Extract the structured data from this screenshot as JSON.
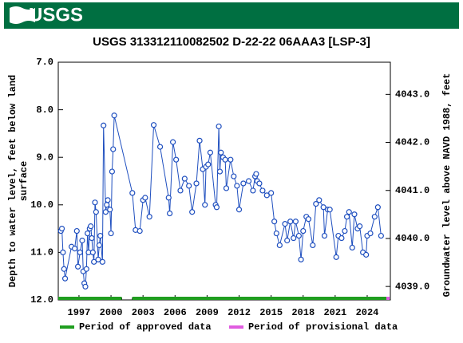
{
  "chart_data": {
    "type": "line",
    "logo": "USGS",
    "title": "USGS 313312110082502 D-22-22 06AAA3 [LSP-3]",
    "ylabel": [
      "Depth to water level, feet below land",
      "surface"
    ],
    "y2label": "Groundwater level above NAVD 1988, feet",
    "xlim": [
      1995.06,
      2026.17
    ],
    "xticks": [
      1997,
      2000,
      2003,
      2006,
      2009,
      2012,
      2015,
      2018,
      2021,
      2024
    ],
    "ylim": [
      7,
      12
    ],
    "yticks": [
      {
        "value": 7,
        "label": "7.0"
      },
      {
        "value": 8,
        "label": "8.0"
      },
      {
        "value": 9,
        "label": "9.0"
      },
      {
        "value": 10,
        "label": "10.0"
      },
      {
        "value": 11,
        "label": "11.0"
      },
      {
        "value": 12,
        "label": "12.0"
      }
    ],
    "y_inverted": true,
    "y2lim": [
      4043.67,
      4038.72
    ],
    "y2ticks": [
      {
        "value": 4039,
        "label": "4039.0"
      },
      {
        "value": 4040,
        "label": "4040.0"
      },
      {
        "value": 4041,
        "label": "4041.0"
      },
      {
        "value": 4042,
        "label": "4042.0"
      },
      {
        "value": 4043,
        "label": "4043.0"
      }
    ],
    "series": [
      {
        "name": "Depth to water level",
        "color": "#1f4fbf",
        "x": [
          1995.3,
          1995.4,
          1995.5,
          1995.6,
          1995.7,
          1996.3,
          1996.6,
          1996.8,
          1996.9,
          1997.1,
          1997.3,
          1997.4,
          1997.5,
          1997.6,
          1997.7,
          1997.8,
          1997.9,
          1998.0,
          1998.1,
          1998.2,
          1998.3,
          1998.4,
          1998.5,
          1998.6,
          1998.8,
          1998.9,
          1999.0,
          1999.2,
          1999.3,
          1999.5,
          1999.6,
          1999.7,
          1999.9,
          2000.0,
          2000.1,
          2000.2,
          2000.3,
          2002.0,
          2002.3,
          2002.7,
          2003.0,
          2003.2,
          2003.6,
          2004.0,
          2004.6,
          2005.4,
          2005.5,
          2005.8,
          2006.1,
          2006.5,
          2006.9,
          2007.3,
          2007.6,
          2008.0,
          2008.3,
          2008.6,
          2008.8,
          2008.9,
          2009.1,
          2009.3,
          2009.8,
          2009.9,
          2010.1,
          2010.2,
          2010.3,
          2010.5,
          2010.7,
          2010.8,
          2011.2,
          2011.5,
          2011.8,
          2012.0,
          2012.4,
          2012.9,
          2013.3,
          2013.5,
          2013.6,
          2013.7,
          2013.9,
          2014.2,
          2014.6,
          2015.0,
          2015.3,
          2015.5,
          2015.8,
          2016.3,
          2016.5,
          2016.8,
          2017.1,
          2017.3,
          2017.6,
          2017.8,
          2018.0,
          2018.3,
          2018.5,
          2018.9,
          2019.2,
          2019.5,
          2019.9,
          2020.0,
          2020.3,
          2020.5,
          2021.1,
          2021.3,
          2021.6,
          2021.9,
          2022.1,
          2022.3,
          2022.6,
          2022.8,
          2023.1,
          2023.3,
          2023.6,
          2023.9,
          2024.0,
          2024.3,
          2024.7,
          2025.0,
          2025.3
        ],
        "values": [
          10.55,
          10.5,
          11.0,
          11.35,
          11.55,
          10.88,
          10.92,
          10.55,
          11.3,
          11.0,
          10.75,
          11.4,
          11.65,
          11.72,
          11.35,
          10.6,
          11.0,
          10.5,
          10.45,
          10.7,
          11.0,
          11.2,
          9.95,
          10.15,
          11.15,
          10.85,
          10.65,
          11.2,
          8.33,
          10.15,
          10.0,
          9.9,
          10.1,
          10.6,
          9.3,
          8.83,
          8.12,
          9.75,
          10.53,
          10.55,
          9.9,
          9.85,
          10.25,
          8.32,
          8.78,
          9.85,
          10.18,
          8.68,
          9.05,
          9.7,
          9.45,
          9.6,
          10.15,
          9.55,
          8.65,
          9.25,
          10.0,
          9.2,
          9.15,
          8.9,
          10.0,
          10.05,
          8.35,
          9.3,
          8.9,
          9.0,
          9.05,
          9.65,
          9.05,
          9.4,
          9.6,
          10.1,
          9.55,
          9.5,
          9.7,
          9.4,
          9.35,
          9.5,
          9.55,
          9.7,
          9.8,
          9.75,
          10.35,
          10.6,
          10.85,
          10.4,
          10.75,
          10.35,
          10.7,
          10.35,
          10.65,
          11.15,
          10.55,
          10.25,
          10.3,
          10.85,
          9.98,
          9.9,
          10.05,
          10.65,
          10.1,
          10.1,
          11.1,
          10.65,
          10.7,
          10.55,
          10.25,
          10.15,
          10.9,
          10.2,
          10.5,
          10.45,
          11.0,
          11.05,
          10.65,
          10.6,
          10.25,
          10.05,
          10.65
        ]
      }
    ],
    "periods": [
      {
        "name": "Period of approved data",
        "color": "#1f9e1f",
        "ranges": [
          [
            1995.06,
            2001.0
          ],
          [
            2002.0,
            2025.8
          ]
        ]
      },
      {
        "name": "Period of provisional data",
        "color": "#e05ce0",
        "ranges": [
          [
            2025.8,
            2026.1
          ]
        ]
      }
    ]
  }
}
